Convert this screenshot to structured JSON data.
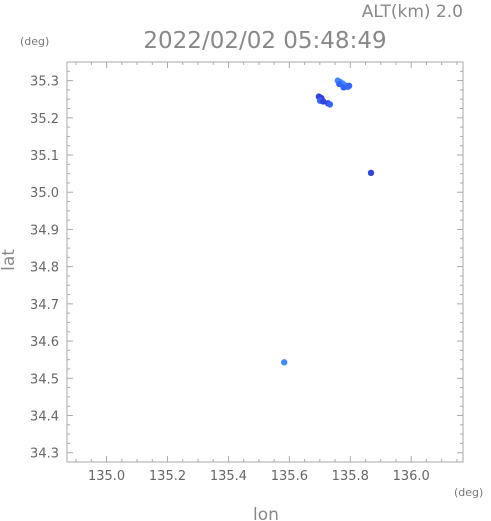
{
  "header": {
    "altitude_label": "ALT(km) 2.0",
    "timestamp": "2022/02/02 05:48:49",
    "y_unit": "(deg)",
    "x_unit": "(deg)"
  },
  "chart_data": {
    "type": "scatter",
    "title": "2022/02/02 05:48:49",
    "xlabel": "lon",
    "ylabel": "lat",
    "x_unit": "(deg)",
    "y_unit": "(deg)",
    "xlim": [
      134.87,
      136.17
    ],
    "ylim": [
      34.275,
      35.35
    ],
    "xticks": [
      "135.0",
      "135.2",
      "135.4",
      "135.6",
      "135.8",
      "136.0"
    ],
    "yticks": [
      "34.3",
      "34.4",
      "34.5",
      "34.6",
      "34.7",
      "34.8",
      "34.9",
      "35.0",
      "35.1",
      "35.2",
      "35.3"
    ],
    "grid": false,
    "colors": {
      "echo_light": "#4488ff",
      "echo_mid": "#3366ff",
      "echo_dark": "#3344dd"
    },
    "points": [
      {
        "lon": 135.759,
        "lat": 35.3,
        "color": "#4488ff"
      },
      {
        "lon": 135.767,
        "lat": 35.296,
        "color": "#4488ff"
      },
      {
        "lon": 135.775,
        "lat": 35.292,
        "color": "#4488ff"
      },
      {
        "lon": 135.784,
        "lat": 35.287,
        "color": "#4488ff"
      },
      {
        "lon": 135.791,
        "lat": 35.283,
        "color": "#4488ff"
      },
      {
        "lon": 135.778,
        "lat": 35.282,
        "color": "#3366ff"
      },
      {
        "lon": 135.764,
        "lat": 35.291,
        "color": "#3366ff"
      },
      {
        "lon": 135.796,
        "lat": 35.286,
        "color": "#3366ff"
      },
      {
        "lon": 135.697,
        "lat": 35.257,
        "color": "#3344dd"
      },
      {
        "lon": 135.705,
        "lat": 35.253,
        "color": "#3344dd"
      },
      {
        "lon": 135.701,
        "lat": 35.246,
        "color": "#3366ff"
      },
      {
        "lon": 135.711,
        "lat": 35.244,
        "color": "#3344dd"
      },
      {
        "lon": 135.727,
        "lat": 35.239,
        "color": "#3344dd"
      },
      {
        "lon": 135.733,
        "lat": 35.236,
        "color": "#3366ff"
      },
      {
        "lon": 135.868,
        "lat": 35.052,
        "color": "#3344dd"
      },
      {
        "lon": 135.583,
        "lat": 34.543,
        "color": "#4488ff"
      }
    ]
  }
}
